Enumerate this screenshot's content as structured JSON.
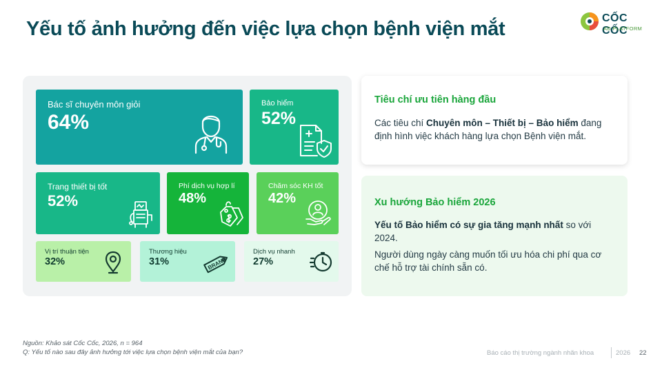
{
  "title": "Yếu tố ảnh hưởng đến việc lựa chọn bệnh viện mắt",
  "logo": {
    "brand": "CỐC CỐC",
    "sub": "AD PLATFORM",
    "icon": "coccoc-logo-icon"
  },
  "tiles": [
    {
      "label": "Bác sĩ chuyên môn giỏi",
      "value": "64%",
      "icon": "doctor-icon",
      "color": "#14a3a0"
    },
    {
      "label": "Bảo hiểm",
      "value": "52%",
      "icon": "insurance-document-icon",
      "color": "#18b788"
    },
    {
      "label": "Trang thiết bị tốt",
      "value": "52%",
      "icon": "medical-equipment-icon",
      "color": "#18b788"
    },
    {
      "label": "Phí dịch vụ hợp lí",
      "value": "48%",
      "icon": "price-tag-icon",
      "color": "#15b43a"
    },
    {
      "label": "Chăm sóc KH tốt",
      "value": "42%",
      "icon": "customer-care-icon",
      "color": "#5ad05a"
    },
    {
      "label": "Vị trí thuận tiện",
      "value": "32%",
      "icon": "location-pin-icon",
      "color": "#b9f0a8"
    },
    {
      "label": "Thương hiệu",
      "value": "31%",
      "icon": "brand-tag-icon",
      "color": "#b3f2d8"
    },
    {
      "label": "Dịch vụ nhanh",
      "value": "27%",
      "icon": "fast-clock-icon",
      "color": "#e3f9ec"
    }
  ],
  "card1": {
    "heading": "Tiêu chí ưu tiên hàng đầu",
    "text_pre": "Các tiêu chí ",
    "text_bold": "Chuyên môn – Thiết bị – Bảo hiểm",
    "text_post": " đang định hình việc khách hàng lựa chọn Bệnh viện mắt."
  },
  "card2": {
    "heading": "Xu hướng Bảo hiểm 2026",
    "p1_bold": "Yếu tố Bảo hiểm có sự gia tăng mạnh nhất",
    "p1_post": " so với 2024.",
    "p2": "Người dùng ngày càng muốn tối ưu hóa chi phí qua cơ chế hỗ trợ tài chính sẵn có."
  },
  "source": {
    "line1": "Nguồn: Khảo sát Cốc Cốc, 2026, n = 964",
    "line2": "Q: Yếu tố nào sau đây ảnh hưởng tới việc lựa chọn bệnh viện mắt của bạn?"
  },
  "footer": {
    "report": "Báo cáo thị trường ngành nhãn khoa",
    "year": "2026",
    "page": "22"
  },
  "colors": {
    "title": "#0a4a57",
    "accent_green": "#19a53a"
  }
}
